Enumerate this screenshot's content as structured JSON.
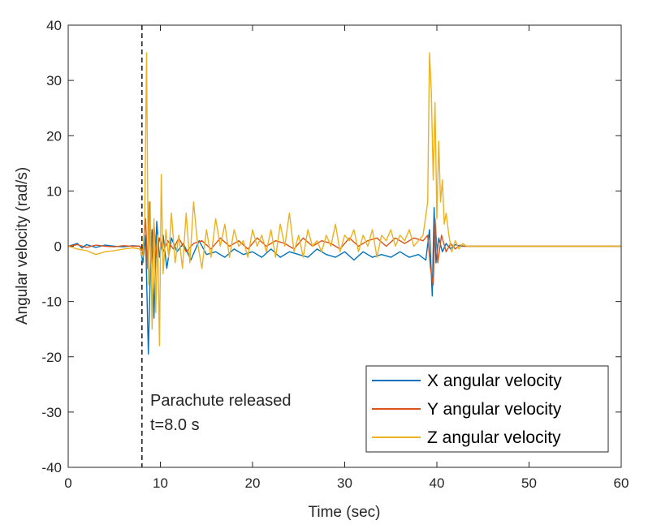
{
  "chart_data": {
    "type": "line",
    "title": "",
    "xlabel": "Time (sec)",
    "ylabel": "Angular velocity (rad/s)",
    "xlim": [
      0,
      60
    ],
    "ylim": [
      -40,
      40
    ],
    "xticks": [
      "0",
      "10",
      "20",
      "30",
      "40",
      "50",
      "60"
    ],
    "yticks": [
      "40",
      "30",
      "20",
      "10",
      "0",
      "-10",
      "-20",
      "-30",
      "-40"
    ],
    "legend_position": "bottom-right",
    "annotation": {
      "line1": "Parachute released",
      "line2": "t=8.0 s",
      "x": 8.0
    },
    "series": [
      {
        "name": "X angular velocity",
        "color": "#0072BD",
        "x": [
          0,
          1,
          1.5,
          2,
          3,
          4,
          5,
          6,
          7,
          7.8,
          8.1,
          8.4,
          8.7,
          8.9,
          9.1,
          9.3,
          9.6,
          9.9,
          10.3,
          10.7,
          11.2,
          11.8,
          12.5,
          13.3,
          14.2,
          15.0,
          16.0,
          17.0,
          18.0,
          19.0,
          20.0,
          21.0,
          22.0,
          23.0,
          24.0,
          25.0,
          26.0,
          27.0,
          28.0,
          29.0,
          30.0,
          31.0,
          32.0,
          33.0,
          34.0,
          35.0,
          36.0,
          37.0,
          38.0,
          38.8,
          39.2,
          39.5,
          39.7,
          39.9,
          40.2,
          40.6,
          41.0,
          41.5,
          42.0,
          42.6,
          43.0,
          44,
          60
        ],
        "values": [
          0,
          0.5,
          -0.3,
          0.3,
          -0.2,
          0.2,
          0,
          -0.1,
          0.1,
          0,
          -3,
          2,
          -19.5,
          -5,
          3,
          -13,
          4.5,
          -2,
          2,
          -4,
          1.5,
          -1,
          0.5,
          -2.5,
          1,
          -1.5,
          -1,
          -2,
          -0.5,
          -1.5,
          -1,
          -2,
          -0.5,
          -2,
          -1,
          -1.5,
          -2,
          -0.5,
          -1.5,
          -2,
          -1,
          -2.5,
          -1,
          -2,
          -1.5,
          -2,
          -1,
          -2,
          -1.5,
          -2.5,
          3,
          -9,
          7,
          -3,
          1.5,
          -1,
          0.5,
          -0.5,
          0.3,
          0,
          0,
          0,
          0
        ]
      },
      {
        "name": "Y angular velocity",
        "color": "#D95319",
        "x": [
          0,
          1,
          2,
          3,
          4,
          5,
          6,
          7,
          7.8,
          8.1,
          8.4,
          8.6,
          8.8,
          9.0,
          9.3,
          9.6,
          9.9,
          10.3,
          10.8,
          11.4,
          12.0,
          12.8,
          13.6,
          14.5,
          15.5,
          16.5,
          17.5,
          18.5,
          19.5,
          20.5,
          21.5,
          22.5,
          23.5,
          24.5,
          25.5,
          26.5,
          27.5,
          28.5,
          29.5,
          30.5,
          31.5,
          32.5,
          33.5,
          34.5,
          35.5,
          36.5,
          37.5,
          38.5,
          39.0,
          39.3,
          39.6,
          39.8,
          40.1,
          40.5,
          41.0,
          41.5,
          42.0,
          42.5,
          43.0,
          44,
          60
        ],
        "values": [
          0,
          0.3,
          -0.2,
          0.2,
          0,
          -0.1,
          0.1,
          0,
          0,
          -1,
          5,
          -4,
          8,
          -3,
          4,
          -2,
          1.5,
          -1,
          1,
          -0.5,
          1.5,
          -1,
          0.5,
          1,
          -0.5,
          1.5,
          0,
          1,
          -0.5,
          1.5,
          0,
          1,
          0.5,
          -0.5,
          1.5,
          0,
          1,
          0.5,
          -0.5,
          1.5,
          0,
          1,
          1.5,
          0,
          1.5,
          0.5,
          1.5,
          1,
          2,
          -4,
          -7,
          5,
          -3,
          2,
          -1,
          0.5,
          -0.5,
          0.2,
          0,
          0,
          0
        ]
      },
      {
        "name": "Z angular velocity",
        "color": "#EDB120",
        "x": [
          0,
          1,
          2,
          3,
          4,
          5,
          6,
          7,
          7.8,
          8.1,
          8.3,
          8.5,
          8.7,
          8.9,
          9.1,
          9.3,
          9.5,
          9.7,
          9.9,
          10.1,
          10.3,
          10.6,
          10.9,
          11.2,
          11.6,
          12.0,
          12.4,
          12.8,
          13.2,
          13.6,
          14.0,
          14.5,
          15.0,
          15.5,
          16.0,
          16.5,
          17.0,
          17.5,
          18.0,
          18.5,
          19.0,
          19.5,
          20.0,
          20.5,
          21.0,
          21.5,
          22.0,
          22.5,
          23.0,
          23.5,
          24.0,
          24.5,
          25.0,
          25.5,
          26.0,
          26.5,
          27.0,
          27.5,
          28.0,
          28.5,
          29.0,
          29.5,
          30.0,
          30.5,
          31.0,
          31.5,
          32.0,
          32.5,
          33.0,
          33.5,
          34.0,
          34.5,
          35.0,
          35.5,
          36.0,
          36.5,
          37.0,
          37.5,
          38.0,
          38.5,
          39.0,
          39.2,
          39.4,
          39.6,
          39.8,
          40.0,
          40.2,
          40.4,
          40.6,
          40.8,
          41.0,
          41.3,
          41.6,
          42.0,
          42.4,
          42.8,
          43.2,
          44,
          60
        ],
        "values": [
          0,
          -0.5,
          -0.8,
          -1.5,
          -1,
          -0.8,
          -0.5,
          -0.3,
          -0.5,
          -2,
          5,
          35,
          -7,
          8,
          -15,
          5,
          -12,
          2,
          -18,
          13,
          -5,
          3,
          -2,
          6,
          -3,
          2,
          -4,
          6,
          -3,
          8,
          1,
          -4,
          3,
          -2,
          5,
          0,
          4,
          -2,
          3,
          0,
          1,
          -2,
          3,
          0,
          2,
          -1,
          3,
          -2,
          4,
          0,
          6,
          -1,
          2,
          -2,
          3,
          0,
          1,
          -1,
          2,
          0,
          4,
          -1,
          2,
          1,
          3,
          -1,
          2,
          0,
          3,
          -2,
          2,
          1,
          3,
          0,
          2,
          1,
          3,
          0,
          1,
          2,
          8,
          35,
          28,
          12,
          26,
          5,
          19,
          8,
          12,
          4,
          6,
          2,
          -1,
          1,
          -0.5,
          0.5,
          0,
          0,
          0
        ]
      }
    ]
  }
}
